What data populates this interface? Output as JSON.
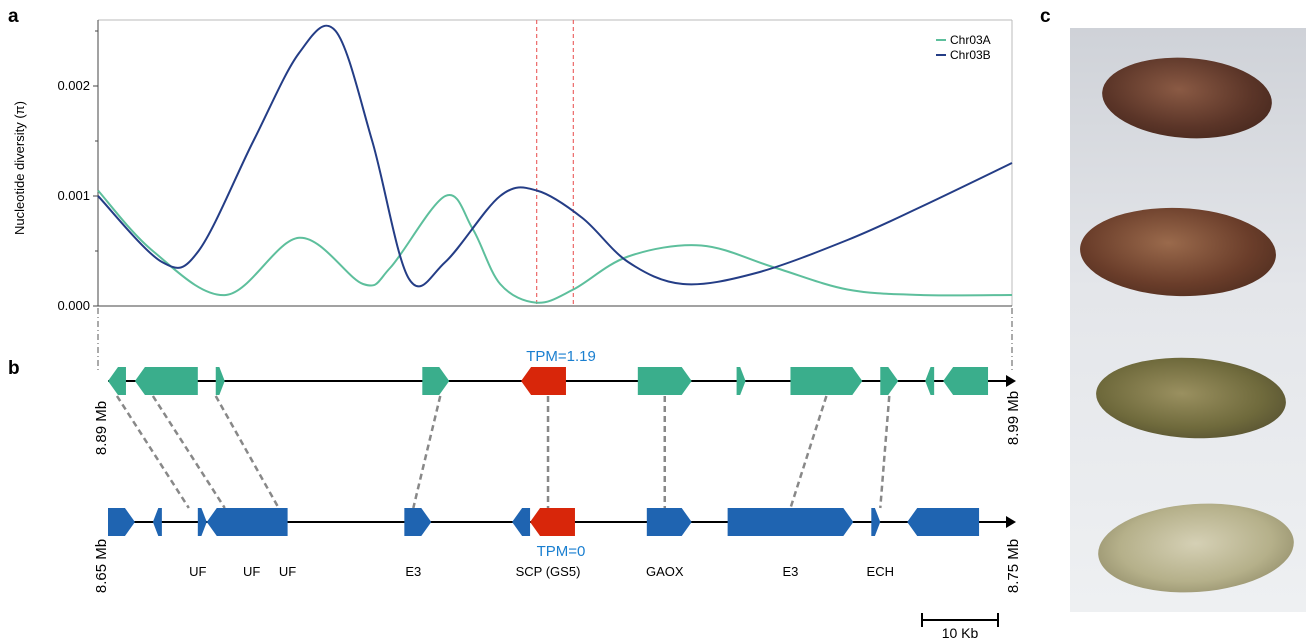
{
  "panels": {
    "a": "a",
    "b": "b",
    "c": "c"
  },
  "chart_data": {
    "type": "line",
    "ylabel": "Nucleotide diversity (π)",
    "yticks": [
      "0.000",
      "0.001",
      "0.002"
    ],
    "ylim": [
      0,
      0.0026
    ],
    "xlim": [
      0,
      1
    ],
    "legend_position": "top-right",
    "highlight_region": [
      0.48,
      0.52
    ],
    "series": [
      {
        "name": "Chr03A",
        "color": "#5dbf9c",
        "x": [
          0,
          0.06,
          0.14,
          0.22,
          0.29,
          0.32,
          0.38,
          0.41,
          0.44,
          0.48,
          0.52,
          0.58,
          0.66,
          0.74,
          0.82,
          0.9,
          1.0
        ],
        "y": [
          0.00105,
          0.0005,
          0.0001,
          0.00062,
          0.0002,
          0.00035,
          0.001,
          0.0007,
          0.0002,
          3e-05,
          0.00015,
          0.00045,
          0.00055,
          0.00035,
          0.00015,
          0.0001,
          0.0001
        ]
      },
      {
        "name": "Chr03B",
        "color": "#243d86",
        "x": [
          0,
          0.07,
          0.11,
          0.17,
          0.22,
          0.26,
          0.3,
          0.34,
          0.38,
          0.44,
          0.48,
          0.53,
          0.58,
          0.64,
          0.72,
          0.82,
          0.9,
          1.0
        ],
        "y": [
          0.001,
          0.0004,
          0.0005,
          0.0015,
          0.0023,
          0.0025,
          0.0015,
          0.00025,
          0.0004,
          0.001,
          0.00105,
          0.0008,
          0.0004,
          0.0002,
          0.0003,
          0.0006,
          0.0009,
          0.0013
        ]
      }
    ]
  },
  "panel_b": {
    "top_track": {
      "start_label": "8.89 Mb",
      "end_label": "8.99 Mb",
      "color": "#3aae8c",
      "genes": [
        {
          "start": 0.0,
          "end": 0.02,
          "dir": "left"
        },
        {
          "start": 0.03,
          "end": 0.1,
          "dir": "left"
        },
        {
          "start": 0.12,
          "end": 0.13,
          "dir": "right"
        },
        {
          "start": 0.35,
          "end": 0.38,
          "dir": "right"
        },
        {
          "start": 0.46,
          "end": 0.51,
          "dir": "left",
          "highlight": true
        },
        {
          "start": 0.59,
          "end": 0.65,
          "dir": "right"
        },
        {
          "start": 0.7,
          "end": 0.71,
          "dir": "right"
        },
        {
          "start": 0.76,
          "end": 0.84,
          "dir": "right"
        },
        {
          "start": 0.86,
          "end": 0.88,
          "dir": "right"
        },
        {
          "start": 0.91,
          "end": 0.92,
          "dir": "left"
        },
        {
          "start": 0.93,
          "end": 0.98,
          "dir": "left"
        }
      ]
    },
    "bottom_track": {
      "start_label": "8.65 Mb",
      "end_label": "8.75 Mb",
      "color": "#1f64b1",
      "genes": [
        {
          "start": 0.0,
          "end": 0.03,
          "dir": "right"
        },
        {
          "start": 0.05,
          "end": 0.06,
          "dir": "left"
        },
        {
          "start": 0.1,
          "end": 0.11,
          "dir": "right"
        },
        {
          "start": 0.11,
          "end": 0.2,
          "dir": "left"
        },
        {
          "start": 0.33,
          "end": 0.36,
          "dir": "right"
        },
        {
          "start": 0.45,
          "end": 0.47,
          "dir": "left"
        },
        {
          "start": 0.47,
          "end": 0.52,
          "dir": "left",
          "highlight": true
        },
        {
          "start": 0.6,
          "end": 0.65,
          "dir": "right"
        },
        {
          "start": 0.69,
          "end": 0.83,
          "dir": "right"
        },
        {
          "start": 0.85,
          "end": 0.86,
          "dir": "right"
        },
        {
          "start": 0.89,
          "end": 0.97,
          "dir": "left"
        }
      ]
    },
    "links": [
      [
        0.01,
        0.09
      ],
      [
        0.05,
        0.13
      ],
      [
        0.12,
        0.19
      ],
      [
        0.37,
        0.34
      ],
      [
        0.49,
        0.49
      ],
      [
        0.62,
        0.62
      ],
      [
        0.8,
        0.76
      ],
      [
        0.87,
        0.86
      ]
    ],
    "highlight_color": "#d8260a",
    "tpm_top": "TPM=1.19",
    "tpm_bottom": "TPM=0",
    "tpm_color": "#1a7fd0",
    "gene_labels": [
      {
        "text": "UF",
        "pos": 0.1
      },
      {
        "text": "UF",
        "pos": 0.16
      },
      {
        "text": "UF",
        "pos": 0.2
      },
      {
        "text": "E3",
        "pos": 0.34
      },
      {
        "text": "SCP (GS5)",
        "pos": 0.49
      },
      {
        "text": "GAOX",
        "pos": 0.62
      },
      {
        "text": "E3",
        "pos": 0.76
      },
      {
        "text": "ECH",
        "pos": 0.86
      }
    ],
    "scale_bar": "10 Kb"
  },
  "panel_c": {
    "seeds": [
      {
        "label": "seed-1",
        "color": "#5b3528"
      },
      {
        "label": "seed-2",
        "color": "#6a3d2a"
      },
      {
        "label": "seed-3",
        "color": "#6f6a3c"
      },
      {
        "label": "seed-4",
        "color": "#b5b08a"
      }
    ]
  }
}
